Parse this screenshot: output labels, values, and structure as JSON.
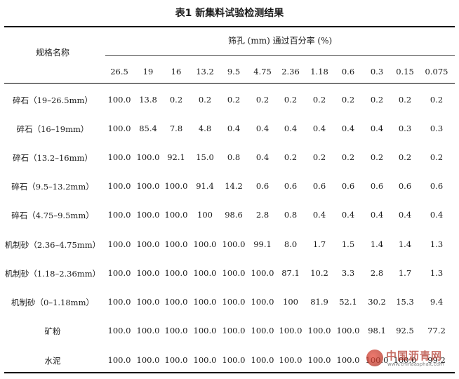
{
  "title": "表1  新集料试验检测结果",
  "header": {
    "name_label": "规格名称",
    "group_label": "筛孔 (mm) 通过百分率 (%)",
    "sieves": [
      "26.5",
      "19",
      "16",
      "13.2",
      "9.5",
      "4.75",
      "2.36",
      "1.18",
      "0.6",
      "0.3",
      "0.15",
      "0.075"
    ]
  },
  "rows": [
    {
      "name": "碎石（19–26.5mm）",
      "values": [
        "100.0",
        "13.8",
        "0.2",
        "0.2",
        "0.2",
        "0.2",
        "0.2",
        "0.2",
        "0.2",
        "0.2",
        "0.2",
        "0.2"
      ]
    },
    {
      "name": "碎石（16–19mm）",
      "values": [
        "100.0",
        "85.4",
        "7.8",
        "4.8",
        "0.4",
        "0.4",
        "0.4",
        "0.4",
        "0.4",
        "0.4",
        "0.3",
        "0.3"
      ]
    },
    {
      "name": "碎石（13.2–16mm）",
      "values": [
        "100.0",
        "100.0",
        "92.1",
        "15.0",
        "0.8",
        "0.4",
        "0.2",
        "0.2",
        "0.2",
        "0.2",
        "0.2",
        "0.2"
      ]
    },
    {
      "name": "碎石（9.5–13.2mm）",
      "values": [
        "100.0",
        "100.0",
        "100.0",
        "91.4",
        "14.2",
        "0.6",
        "0.6",
        "0.6",
        "0.6",
        "0.6",
        "0.6",
        "0.6"
      ]
    },
    {
      "name": "碎石（4.75–9.5mm）",
      "values": [
        "100.0",
        "100.0",
        "100.0",
        "100",
        "98.6",
        "2.8",
        "0.8",
        "0.4",
        "0.4",
        "0.4",
        "0.4",
        "0.4"
      ]
    },
    {
      "name": "机制砂（2.36–4.75mm）",
      "values": [
        "100.0",
        "100.0",
        "100.0",
        "100.0",
        "100.0",
        "99.1",
        "8.0",
        "1.7",
        "1.5",
        "1.4",
        "1.4",
        "1.3"
      ]
    },
    {
      "name": "机制砂（1.18–2.36mm）",
      "values": [
        "100.0",
        "100.0",
        "100.0",
        "100.0",
        "100.0",
        "100.0",
        "87.1",
        "10.2",
        "3.3",
        "2.8",
        "1.7",
        "1.3"
      ]
    },
    {
      "name": "机制砂（0–1.18mm）",
      "values": [
        "100.0",
        "100.0",
        "100.0",
        "100.0",
        "100.0",
        "100.0",
        "100",
        "81.9",
        "52.1",
        "30.2",
        "15.3",
        "9.4"
      ]
    },
    {
      "name": "矿粉",
      "values": [
        "100.0",
        "100.0",
        "100.0",
        "100.0",
        "100.0",
        "100.0",
        "100.0",
        "100.0",
        "100.0",
        "98.1",
        "92.5",
        "77.2"
      ]
    },
    {
      "name": "水泥",
      "values": [
        "100.0",
        "100.0",
        "100.0",
        "100.0",
        "100.0",
        "100.0",
        "100.0",
        "100.0",
        "100.0",
        "100.0",
        "100.0",
        "99.2"
      ]
    }
  ],
  "watermark": {
    "text": "中国沥青网",
    "sub": "www.chinaasphalt.com"
  }
}
